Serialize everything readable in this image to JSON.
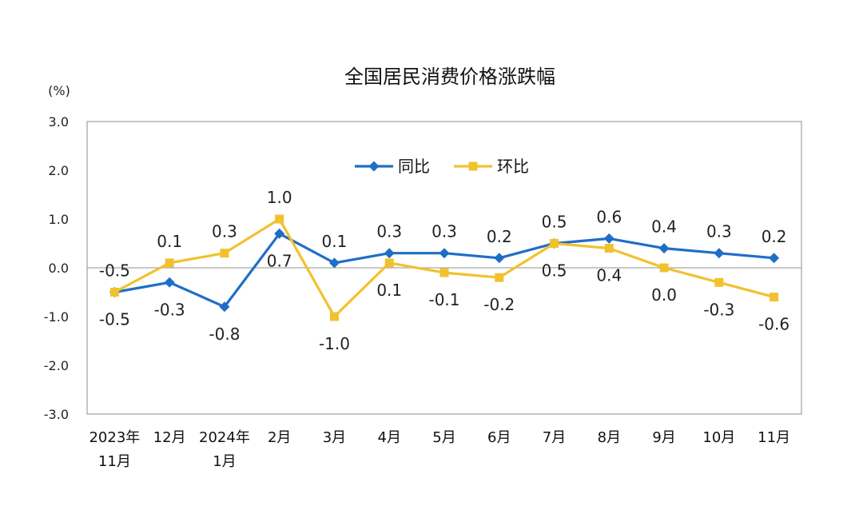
{
  "chart_data": {
    "type": "line",
    "title": "全国居民消费价格涨跌幅",
    "y_unit": "(%)",
    "ylim": [
      -3.0,
      3.0
    ],
    "yticks": [
      "3.0",
      "2.0",
      "1.0",
      "0.0",
      "-1.0",
      "-2.0",
      "-3.0"
    ],
    "ytick_values": [
      3,
      2,
      1,
      0,
      -1,
      -2,
      -3
    ],
    "categories": [
      [
        "2023年",
        "11月"
      ],
      [
        "12月"
      ],
      [
        "2024年",
        "1月"
      ],
      [
        "2月"
      ],
      [
        "3月"
      ],
      [
        "4月"
      ],
      [
        "5月"
      ],
      [
        "6月"
      ],
      [
        "7月"
      ],
      [
        "8月"
      ],
      [
        "9月"
      ],
      [
        "10月"
      ],
      [
        "11月"
      ]
    ],
    "legend_position": "top-center",
    "series": [
      {
        "name": "同比",
        "color": "#1f6ec6",
        "marker": "diamond",
        "values": [
          -0.5,
          -0.3,
          -0.8,
          0.7,
          0.1,
          0.3,
          0.3,
          0.2,
          0.5,
          0.6,
          0.4,
          0.3,
          0.2
        ],
        "labels": [
          "-0.5",
          "-0.3",
          "-0.8",
          "0.7",
          "0.1",
          "0.3",
          "0.3",
          "0.2",
          "0.5",
          "0.6",
          "0.4",
          "0.3",
          "0.2"
        ]
      },
      {
        "name": "环比",
        "color": "#f2c12e",
        "marker": "square",
        "values": [
          -0.5,
          0.1,
          0.3,
          1.0,
          -1.0,
          0.1,
          -0.1,
          -0.2,
          0.5,
          0.4,
          0.0,
          -0.3,
          -0.6
        ],
        "labels": [
          "-0.5",
          "0.1",
          "0.3",
          "1.0",
          "-1.0",
          "0.1",
          "-0.1",
          "-0.2",
          "0.5",
          "0.4",
          "0.0",
          "-0.3",
          "-0.6"
        ]
      }
    ]
  }
}
